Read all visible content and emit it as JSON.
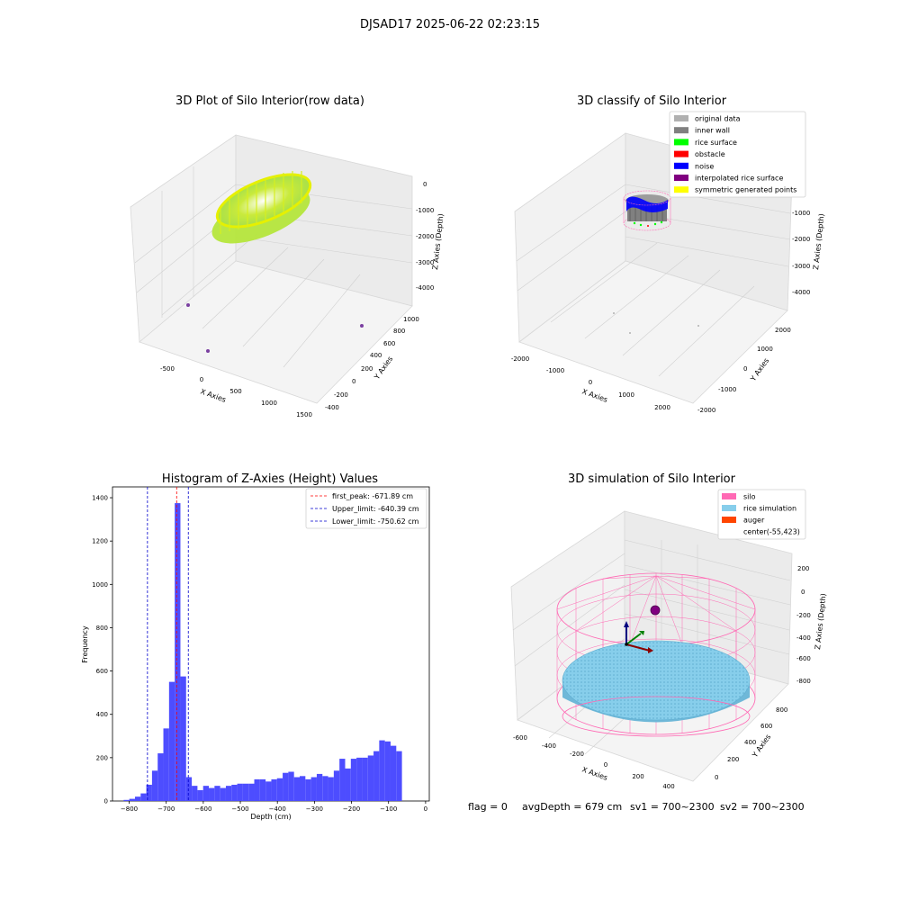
{
  "figure": {
    "suptitle": "DJSAD17 2025-06-22 02:23:15",
    "footer": {
      "flag": "flag = 0",
      "avg_depth": "avgDepth = 679 cm",
      "sv1": "sv1 = 700~2300",
      "sv2": "sv2 = 700~2300"
    }
  },
  "colors": {
    "hist_bar": "#4d4dff",
    "first_peak": "#ff0000",
    "limits": "#0000cc",
    "silo": "#ff69b4",
    "rice": "#87ceeb",
    "auger": "#ff4500",
    "raw_yellow": "#e6f000",
    "raw_green": "#9be03a",
    "outlier": "#7a3fa0"
  },
  "chart_data": [
    {
      "type": "scatter",
      "projection": "3d",
      "title": "3D Plot of Silo Interior(row data)",
      "xlabel": "X Axies",
      "ylabel": "Y Axies",
      "zlabel": "Z Axies (Depth)",
      "x_ticks": [
        "-500",
        "0",
        "500",
        "1000",
        "1500"
      ],
      "y_ticks": [
        "-400",
        "-200",
        "0",
        "200",
        "400",
        "600",
        "800",
        "1000"
      ],
      "z_ticks": [
        "0",
        "-1000",
        "-2000",
        "-3000",
        "-4000"
      ],
      "xlim": [
        -800,
        1500
      ],
      "ylim": [
        -450,
        1050
      ],
      "zlim": [
        -4500,
        300
      ],
      "series": [
        {
          "description_color": "#9be03a",
          "cloud": {
            "center_x": 380,
            "center_y": 380,
            "depth_top": -200,
            "depth_bottom": -800,
            "radius_x": 550,
            "radius_y": 400
          }
        },
        {
          "points": [
            {
              "x": -700,
              "y": 500,
              "z": -3500
            },
            {
              "x": 900,
              "y": -300,
              "z": -4000
            },
            {
              "x": -600,
              "y": 100,
              "z": -4400
            }
          ]
        }
      ],
      "grid": true
    },
    {
      "type": "scatter",
      "projection": "3d",
      "title": "3D classify of Silo Interior",
      "xlabel": "X Axies",
      "ylabel": "Y Axies",
      "zlabel": "Z Axies (Depth)",
      "x_ticks": [
        "-2000",
        "-1000",
        "0",
        "1000",
        "2000"
      ],
      "y_ticks": [
        "-2000",
        "-1000",
        "0",
        "1000",
        "2000"
      ],
      "z_ticks": [
        "0",
        "-1000",
        "-2000",
        "-3000",
        "-4000"
      ],
      "xlim": [
        -2300,
        2300
      ],
      "ylim": [
        -2300,
        2300
      ],
      "zlim": [
        -4500,
        300
      ],
      "legend_position": "upper-right",
      "legend": [
        {
          "label": "original data",
          "color": "#b0b0b0"
        },
        {
          "label": "inner wall",
          "color": "#808080"
        },
        {
          "label": "rice surface",
          "color": "#00ff00"
        },
        {
          "label": "obstacle",
          "color": "#ff0000"
        },
        {
          "label": "noise",
          "color": "#0000ff"
        },
        {
          "label": "interpolated rice surface",
          "color": "#800080"
        },
        {
          "label": "symmetric generated points",
          "color": "#ffff00"
        }
      ],
      "grid": true
    },
    {
      "type": "bar",
      "title": "Histogram of Z-Axies (Height) Values",
      "xlabel": "Depth (cm)",
      "ylabel": "Frequency",
      "xlim": [
        -845,
        10
      ],
      "ylim": [
        0,
        1450
      ],
      "x_ticks": [
        -800,
        -700,
        -600,
        -500,
        -400,
        -300,
        -200,
        -100,
        0
      ],
      "y_ticks": [
        0,
        200,
        400,
        600,
        800,
        1000,
        1200,
        1400
      ],
      "bin_width": 15.33,
      "bin_start": -815,
      "values": [
        5,
        10,
        20,
        35,
        75,
        140,
        220,
        335,
        550,
        1375,
        575,
        110,
        70,
        50,
        70,
        60,
        70,
        60,
        70,
        75,
        80,
        80,
        80,
        100,
        100,
        90,
        100,
        105,
        130,
        135,
        110,
        115,
        100,
        110,
        125,
        115,
        110,
        140,
        195,
        150,
        195,
        200,
        200,
        210,
        230,
        280,
        275,
        255,
        230
      ],
      "lines": [
        {
          "label": "first_peak: -671.89 cm",
          "x": -671.89,
          "color": "#ff0000"
        },
        {
          "label": "Upper_limit: -640.39 cm",
          "x": -640.39,
          "color": "#0000cc"
        },
        {
          "label": "Lower_limit: -750.62 cm",
          "x": -750.62,
          "color": "#0000cc"
        }
      ],
      "legend_position": "upper-right",
      "grid": false
    },
    {
      "type": "scatter",
      "projection": "3d",
      "title": "3D simulation of Silo Interior",
      "xlabel": "X Axies",
      "ylabel": "Y Axies",
      "zlabel": "Z Axies (Depth)",
      "x_ticks": [
        "-600",
        "-400",
        "-200",
        "0",
        "200",
        "400"
      ],
      "y_ticks": [
        "0",
        "200",
        "400",
        "600",
        "800"
      ],
      "z_ticks": [
        "200",
        "0",
        "-200",
        "-400",
        "-600",
        "-800"
      ],
      "xlim": [
        -650,
        480
      ],
      "ylim": [
        -80,
        900
      ],
      "zlim": [
        -850,
        300
      ],
      "legend_position": "upper-right",
      "legend": [
        {
          "label": "silo",
          "color": "#ff69b4"
        },
        {
          "label": "rice simulation",
          "color": "#87ceeb"
        },
        {
          "label": "auger",
          "color": "#ff4500"
        },
        {
          "label": "center(-55,423)",
          "color": ""
        }
      ],
      "grid": true
    }
  ]
}
